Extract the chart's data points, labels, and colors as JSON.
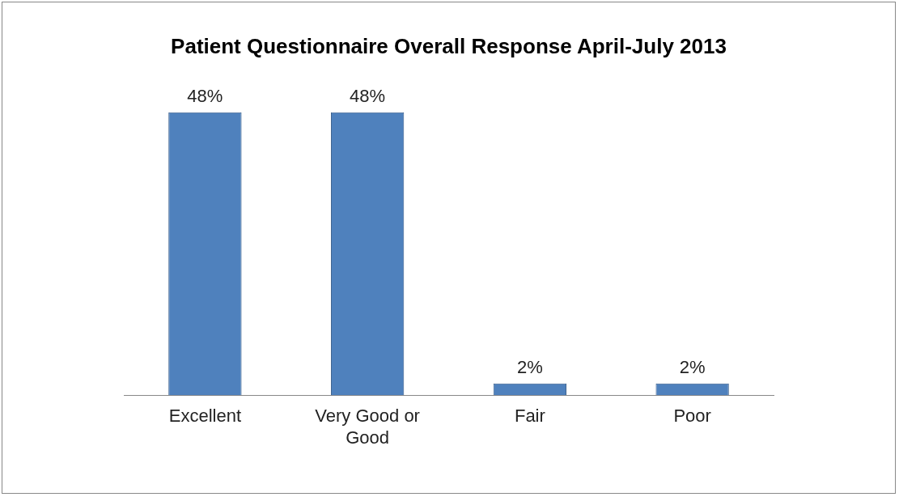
{
  "chart_data": {
    "type": "bar",
    "title": "Patient Questionnaire Overall Response April-July 2013",
    "categories": [
      "Excellent",
      "Very Good or Good",
      "Fair",
      "Poor"
    ],
    "values": [
      48,
      48,
      2,
      2
    ],
    "value_labels": [
      "48%",
      "48%",
      "2%",
      "2%"
    ],
    "color": "#4f81bd",
    "grid": false
  }
}
